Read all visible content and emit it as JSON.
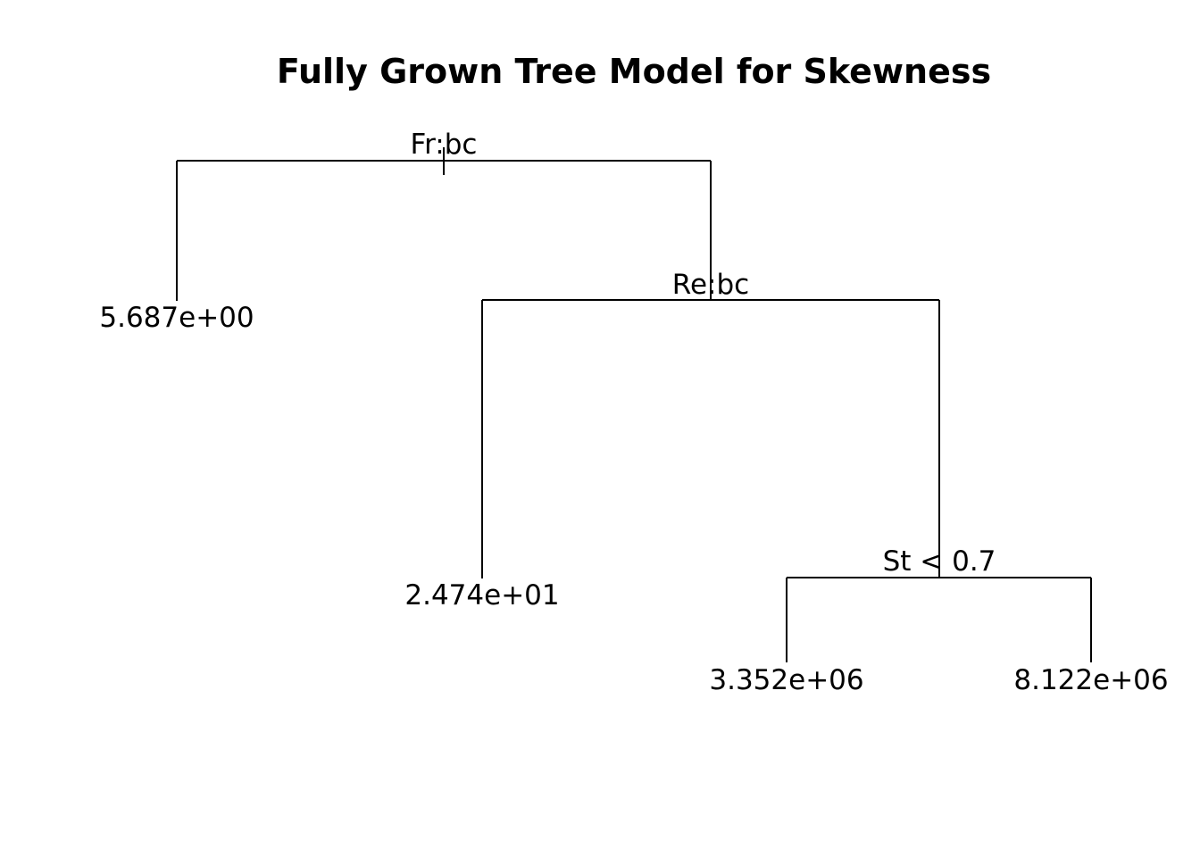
{
  "title": "Fully Grown Tree Model for Skewness",
  "splits": {
    "root": "Fr:bc",
    "right": "Re:bc",
    "right_right": "St < 0.7"
  },
  "leaves": {
    "root_left": "5.687e+00",
    "right_left": "2.474e+01",
    "right_right_left": "3.352e+06",
    "right_right_right": "8.122e+06"
  },
  "colors": {
    "line": "#000000",
    "text": "#000000",
    "background": "#ffffff"
  }
}
